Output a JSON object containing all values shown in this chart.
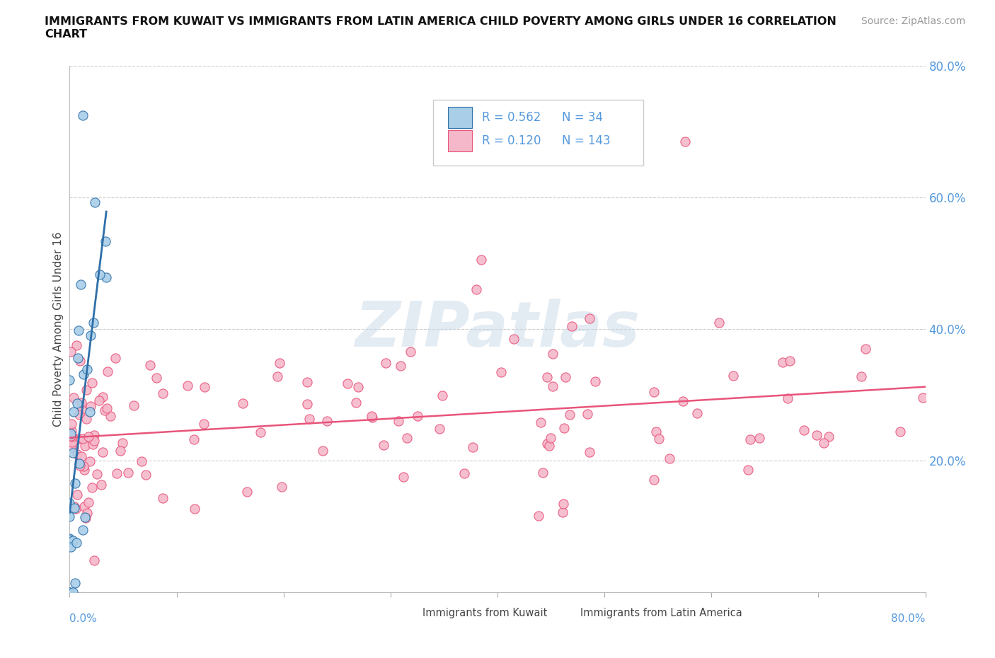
{
  "title": "IMMIGRANTS FROM KUWAIT VS IMMIGRANTS FROM LATIN AMERICA CHILD POVERTY AMONG GIRLS UNDER 16 CORRELATION\nCHART",
  "source": "Source: ZipAtlas.com",
  "ylabel": "Child Poverty Among Girls Under 16",
  "xlim": [
    0.0,
    0.8
  ],
  "ylim": [
    0.0,
    0.8
  ],
  "kuwait_R": 0.562,
  "kuwait_N": 34,
  "latin_R": 0.12,
  "latin_N": 143,
  "kuwait_color": "#A8CEE8",
  "latin_color": "#F5B8CB",
  "kuwait_line_color": "#2E6FA8",
  "latin_line_color": "#E8547A",
  "watermark": "ZIPatlas",
  "background_color": "#ffffff",
  "grid_color": "#cccccc",
  "right_tick_color": "#5599DD",
  "title_color": "#111111",
  "source_color": "#999999"
}
